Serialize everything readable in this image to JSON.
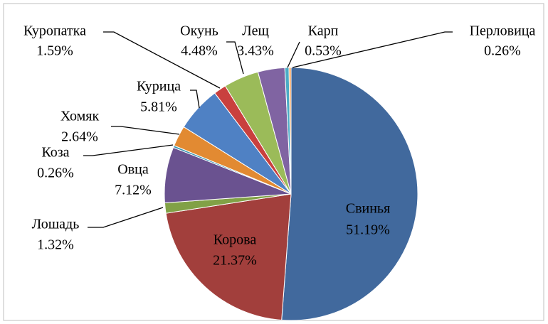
{
  "chart_data": {
    "type": "pie",
    "categories": [
      "Свинья",
      "Корова",
      "Лошадь",
      "Овца",
      "Коза",
      "Хомяк",
      "Курица",
      "Куропатка",
      "Окунь",
      "Лещ",
      "Карп",
      "Перловица"
    ],
    "values": [
      51.19,
      21.37,
      1.32,
      7.12,
      0.26,
      2.64,
      5.81,
      1.59,
      4.48,
      3.43,
      0.53,
      0.26
    ],
    "value_labels": [
      "51.19%",
      "21.37%",
      "1.32%",
      "7.12%",
      "0.26%",
      "2.64%",
      "5.81%",
      "1.59%",
      "4.48%",
      "3.43%",
      "0.53%",
      "0.26%"
    ],
    "colors": [
      "#41699d",
      "#a23f3c",
      "#81a146",
      "#6a5290",
      "#3c96b1",
      "#e28a32",
      "#4f81c4",
      "#c9403e",
      "#9bbb59",
      "#8064a2",
      "#4bacc6",
      "#f79646"
    ]
  }
}
